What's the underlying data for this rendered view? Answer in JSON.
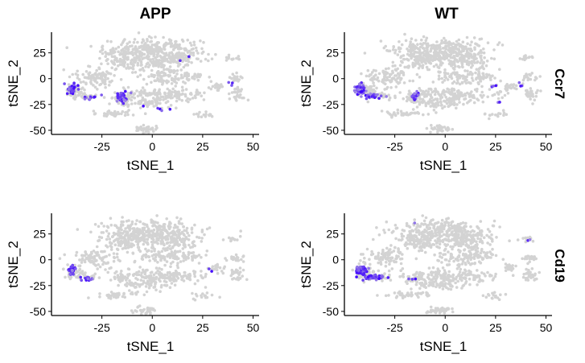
{
  "chart_data": {
    "type": "scatter",
    "facet_columns": [
      "APP",
      "WT"
    ],
    "facet_rows": [
      "Ccr7",
      "Cd19"
    ],
    "xlabel": "tSNE_1",
    "ylabel": "tSNE_2",
    "xlim": [
      -50,
      53
    ],
    "ylim": [
      -54,
      45
    ],
    "xticks": [
      -25,
      0,
      25,
      50
    ],
    "yticks": [
      25,
      0,
      -25,
      -50
    ],
    "x_tick_labels": [
      "-25",
      "0",
      "25",
      "50"
    ],
    "y_tick_labels": [
      "25",
      "0",
      "-25",
      "-50"
    ],
    "low_color": "#d3d3d3",
    "high_color": "#0000ff",
    "base_clusters": [
      {
        "cx": 0,
        "cy": 28,
        "rx": 22,
        "ry": 10,
        "n": 260
      },
      {
        "cx": -12,
        "cy": 18,
        "rx": 12,
        "ry": 9,
        "n": 120
      },
      {
        "cx": 10,
        "cy": 18,
        "rx": 12,
        "ry": 9,
        "n": 110
      },
      {
        "cx": -28,
        "cy": 2,
        "rx": 10,
        "ry": 9,
        "n": 90
      },
      {
        "cx": 8,
        "cy": 2,
        "rx": 14,
        "ry": 8,
        "n": 100
      },
      {
        "cx": 5,
        "cy": -16,
        "rx": 20,
        "ry": 6,
        "n": 150
      },
      {
        "cx": -3,
        "cy": -24,
        "rx": 12,
        "ry": 4,
        "n": 60
      },
      {
        "cx": -18,
        "cy": -34,
        "rx": 10,
        "ry": 2.5,
        "n": 40
      },
      {
        "cx": -3,
        "cy": -49,
        "rx": 6,
        "ry": 3,
        "n": 35
      },
      {
        "cx": 42,
        "cy": -15,
        "rx": 3,
        "ry": 6,
        "n": 30
      },
      {
        "cx": 32,
        "cy": -8,
        "rx": 3,
        "ry": 4,
        "n": 20
      },
      {
        "cx": 40,
        "cy": 20,
        "rx": 3,
        "ry": 2,
        "n": 12
      },
      {
        "cx": 42,
        "cy": 1,
        "rx": 4,
        "ry": 4,
        "n": 18
      },
      {
        "cx": 25,
        "cy": -35,
        "rx": 7,
        "ry": 3,
        "n": 15
      },
      {
        "cx": 21,
        "cy": 3,
        "rx": 4,
        "ry": 3,
        "n": 16
      },
      {
        "cx": -39,
        "cy": -12,
        "rx": 4,
        "ry": 6,
        "n": 50
      },
      {
        "cx": -32,
        "cy": -17,
        "rx": 6,
        "ry": 2.5,
        "n": 22
      },
      {
        "cx": -15,
        "cy": -18,
        "rx": 4,
        "ry": 5,
        "n": 35
      }
    ],
    "panels": [
      {
        "column": "APP",
        "row": "Ccr7",
        "expressed": [
          {
            "cx": -40,
            "cy": -10,
            "rx": 3,
            "ry": 5,
            "n": 35
          },
          {
            "cx": -31,
            "cy": -18,
            "rx": 5,
            "ry": 2,
            "n": 12
          },
          {
            "cx": -15,
            "cy": -17,
            "rx": 3,
            "ry": 5,
            "n": 40
          },
          {
            "cx": 5,
            "cy": -28,
            "rx": 8,
            "ry": 3,
            "n": 5
          },
          {
            "cx": 15,
            "cy": 20,
            "rx": 3,
            "ry": 3,
            "n": 2
          },
          {
            "cx": 40,
            "cy": -5,
            "rx": 2,
            "ry": 2,
            "n": 3
          }
        ]
      },
      {
        "column": "WT",
        "row": "Ccr7",
        "expressed": [
          {
            "cx": -42,
            "cy": -10,
            "rx": 3,
            "ry": 5,
            "n": 45
          },
          {
            "cx": -36,
            "cy": -17,
            "rx": 5,
            "ry": 2.5,
            "n": 25
          },
          {
            "cx": -15,
            "cy": -17,
            "rx": 2.5,
            "ry": 4,
            "n": 20
          },
          {
            "cx": 25,
            "cy": -23,
            "rx": 5,
            "ry": 2,
            "n": 3
          },
          {
            "cx": 24,
            "cy": -7,
            "rx": 2,
            "ry": 2,
            "n": 3
          },
          {
            "cx": 38,
            "cy": -5,
            "rx": 2,
            "ry": 2,
            "n": 3
          }
        ]
      },
      {
        "column": "APP",
        "row": "Cd19",
        "expressed": [
          {
            "cx": -40,
            "cy": -10,
            "rx": 3,
            "ry": 5,
            "n": 30
          },
          {
            "cx": -31,
            "cy": -18,
            "rx": 5,
            "ry": 2,
            "n": 15
          },
          {
            "cx": 28,
            "cy": -10,
            "rx": 2,
            "ry": 2,
            "n": 2
          }
        ]
      },
      {
        "column": "WT",
        "row": "Cd19",
        "expressed": [
          {
            "cx": -42,
            "cy": -10,
            "rx": 3,
            "ry": 5,
            "n": 45
          },
          {
            "cx": -36,
            "cy": -17,
            "rx": 6,
            "ry": 2.5,
            "n": 35
          },
          {
            "cx": -17,
            "cy": -18,
            "rx": 2,
            "ry": 2,
            "n": 3
          },
          {
            "cx": -15,
            "cy": 36,
            "rx": 2,
            "ry": 2,
            "n": 1
          },
          {
            "cx": 42,
            "cy": 18,
            "rx": 2,
            "ry": 2,
            "n": 2
          }
        ]
      }
    ]
  }
}
